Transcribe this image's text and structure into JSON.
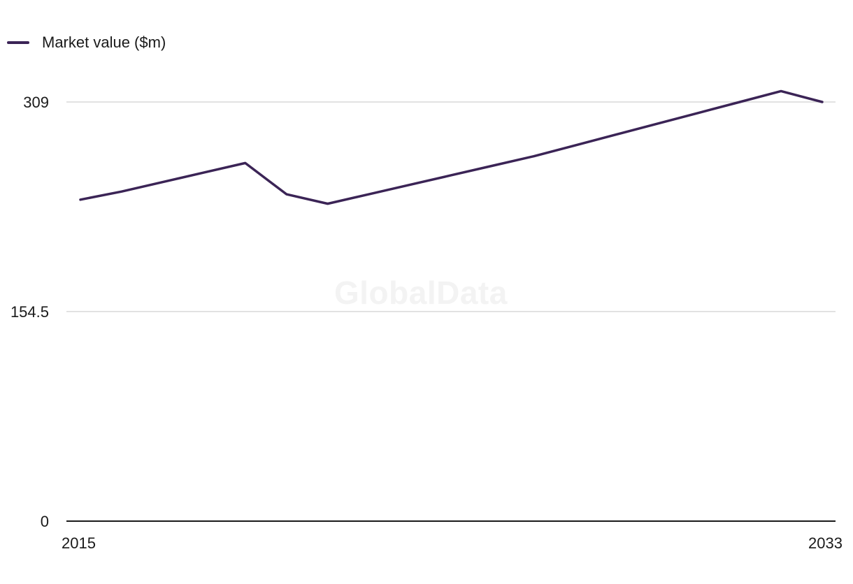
{
  "chart_data": {
    "type": "line",
    "title": "",
    "xlabel": "",
    "ylabel": "",
    "x": [
      2015,
      2016,
      2017,
      2018,
      2019,
      2020,
      2021,
      2022,
      2023,
      2024,
      2025,
      2026,
      2027,
      2028,
      2029,
      2030,
      2031,
      2032,
      2033
    ],
    "series": [
      {
        "name": "Market value ($m)",
        "color": "#3b2456",
        "values": [
          237,
          243,
          250,
          257,
          264,
          241,
          234,
          241,
          248,
          255,
          262,
          269,
          277,
          285,
          293,
          301,
          309,
          317,
          309
        ]
      }
    ],
    "ylim": [
      0,
      309
    ],
    "yticks": [
      {
        "value": 0,
        "label": "0"
      },
      {
        "value": 154.5,
        "label": "154.5"
      },
      {
        "value": 309,
        "label": "309"
      }
    ],
    "xticks": [
      {
        "value": 2015,
        "label": "2015"
      },
      {
        "value": 2033,
        "label": "2033"
      }
    ],
    "grid": true,
    "legend_position": "top-left",
    "gridline_color": "#d9d9d9",
    "axis_color": "#1a1a1a"
  },
  "watermark": "GlobalData"
}
